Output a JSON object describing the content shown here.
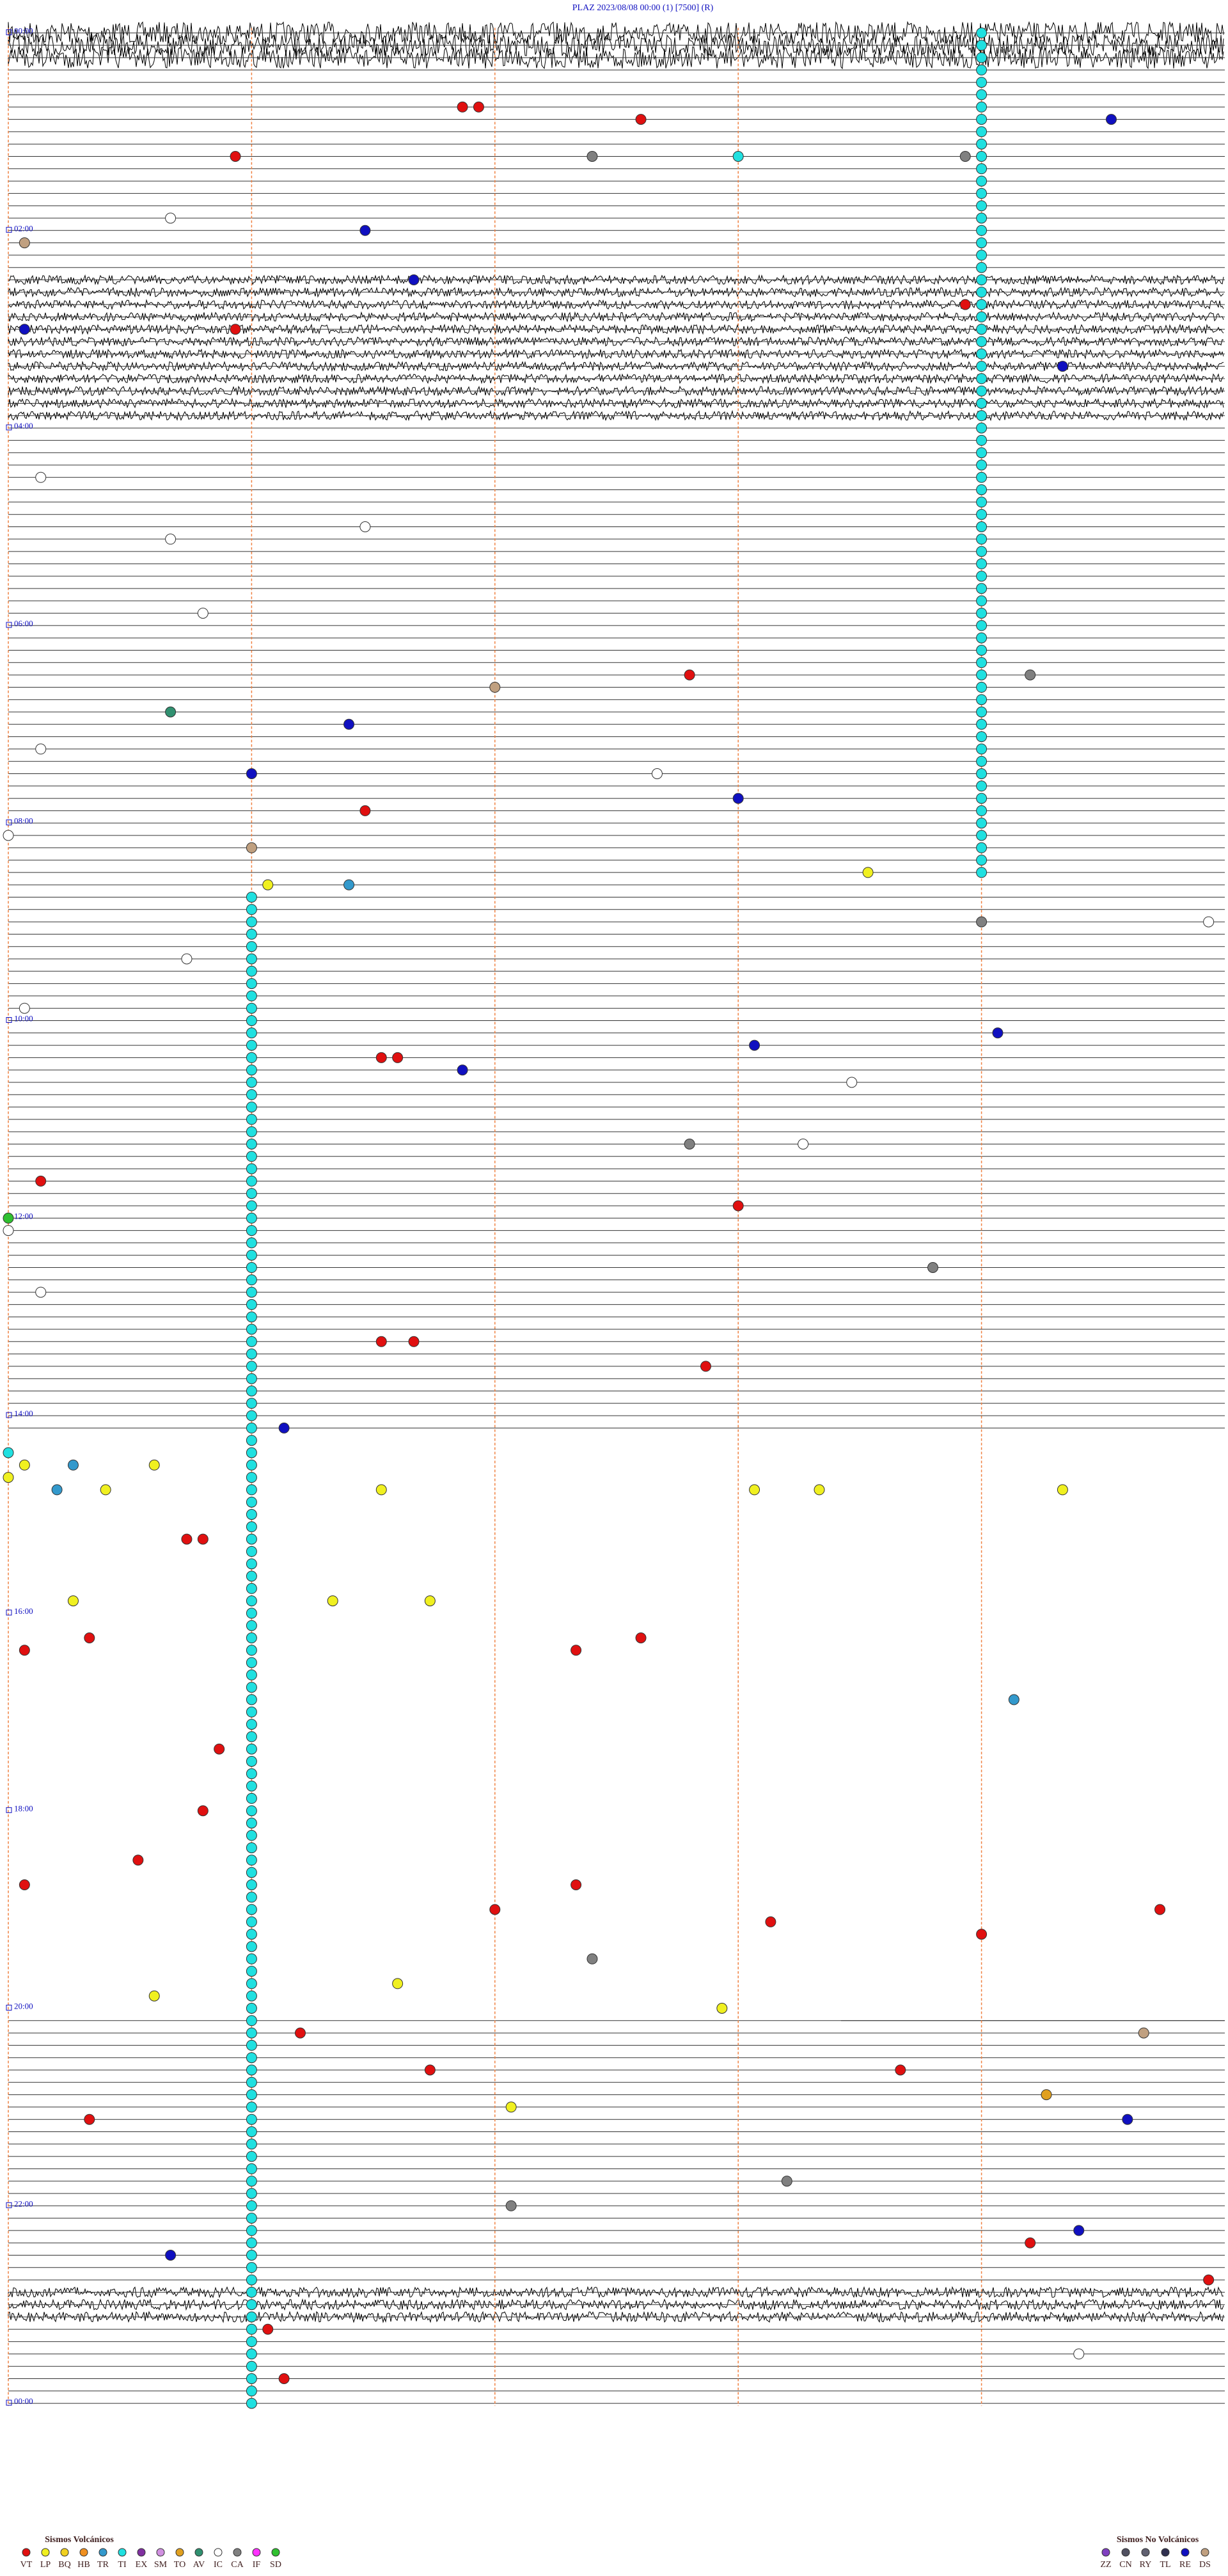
{
  "chart_data": {
    "type": "helicorder",
    "title": "PLAZ    2023/08/08 00:00     (1)   [7500]  (R)",
    "xlim": [
      0,
      7.5
    ],
    "ylim": [
      0,
      1440
    ],
    "yticks": [
      {
        "value": 0,
        "label": "00:00"
      },
      {
        "value": 120,
        "label": "02:00"
      },
      {
        "value": 240,
        "label": "04:00"
      },
      {
        "value": 360,
        "label": "06:00"
      },
      {
        "value": 480,
        "label": "08:00"
      },
      {
        "value": 600,
        "label": "10:00"
      },
      {
        "value": 720,
        "label": "12:00"
      },
      {
        "value": 840,
        "label": "14:00"
      },
      {
        "value": 960,
        "label": "16:00"
      },
      {
        "value": 1080,
        "label": "18:00"
      },
      {
        "value": 1200,
        "label": "20:00"
      },
      {
        "value": 1320,
        "label": "22:00"
      },
      {
        "value": 1440,
        "label": "00:00"
      }
    ],
    "legend": [
      {
        "title": "Sismos Volcánicos",
        "classes": [
          {
            "code": "VT",
            "color": "#e01010"
          },
          {
            "code": "LP",
            "color": "#f0f020"
          },
          {
            "code": "BQ",
            "color": "#f0d020"
          },
          {
            "code": "HB",
            "color": "#f09020"
          },
          {
            "code": "TR",
            "color": "#3399cc"
          },
          {
            "code": "TI",
            "color": "#20e0e0"
          },
          {
            "code": "EX",
            "color": "#8030a0"
          },
          {
            "code": "SM",
            "color": "#d090e0"
          },
          {
            "code": "TO",
            "color": "#e0a020"
          },
          {
            "code": "AV",
            "color": "#309070"
          },
          {
            "code": "IC",
            "color": "#ffffff"
          },
          {
            "code": "CA",
            "color": "#808080"
          },
          {
            "code": "IF",
            "color": "#ff30ff"
          },
          {
            "code": "SD",
            "color": "#30c030"
          }
        ]
      },
      {
        "title": "Sismos No Volcánicos",
        "classes": [
          {
            "code": "ZZ",
            "color": "#8040c0"
          },
          {
            "code": "CN",
            "color": "#505060"
          },
          {
            "code": "RY",
            "color": "#606070"
          },
          {
            "code": "TL",
            "color": "#303050"
          },
          {
            "code": "RE",
            "color": "#1010c0"
          },
          {
            "code": "DS",
            "color": "#c0a080"
          }
        ]
      }
    ],
    "episodes": [
      {
        "code": "TI",
        "first": 6.0,
        "last": 516.0,
        "interval": 7.5
      },
      {
        "code": "TI",
        "first": 526.5,
        "last": 1441.5,
        "interval": 7.5
      }
    ],
    "events": [
      {
        "code": "VT",
        "minute": 47.8
      },
      {
        "code": "VT",
        "minute": 47.9
      },
      {
        "code": "VT",
        "minute": 56.4
      },
      {
        "code": "RE",
        "minute": 59.3
      },
      {
        "code": "VT",
        "minute": 76.4
      },
      {
        "code": "CA",
        "minute": 78.6
      },
      {
        "code": "TI",
        "minute": 79.5
      },
      {
        "code": "CA",
        "minute": 80.9
      },
      {
        "code": "IC",
        "minute": 113.5
      },
      {
        "code": "RE",
        "minute": 122.2
      },
      {
        "code": "DS",
        "minute": 127.6
      },
      {
        "code": "RE",
        "minute": 152.5
      },
      {
        "code": "VT",
        "minute": 170.9
      },
      {
        "code": "RE",
        "minute": 180.1
      },
      {
        "code": "VT",
        "minute": 181.4
      },
      {
        "code": "RE",
        "minute": 209.0
      },
      {
        "code": "IC",
        "minute": 270.2
      },
      {
        "code": "IC",
        "minute": 302.2
      },
      {
        "code": "IC",
        "minute": 308.5
      },
      {
        "code": "IC",
        "minute": 353.7
      },
      {
        "code": "VT",
        "minute": 394.2
      },
      {
        "code": "CA",
        "minute": 396.3
      },
      {
        "code": "DS",
        "minute": 400.5
      },
      {
        "code": "AV",
        "minute": 413.5
      },
      {
        "code": "RE",
        "minute": 422.1
      },
      {
        "code": "IC",
        "minute": 435.2
      },
      {
        "code": "RE",
        "minute": 451.5
      },
      {
        "code": "IC",
        "minute": 454.0
      },
      {
        "code": "RE",
        "minute": 469.5
      },
      {
        "code": "VT",
        "minute": 474.7
      },
      {
        "code": "IC",
        "minute": 487.5
      },
      {
        "code": "DS",
        "minute": 496.5
      },
      {
        "code": "LP",
        "minute": 515.3
      },
      {
        "code": "LP",
        "minute": 519.1
      },
      {
        "code": "TR",
        "minute": 519.6
      },
      {
        "code": "CA",
        "minute": 546.0
      },
      {
        "code": "IC",
        "minute": 547.4
      },
      {
        "code": "IC",
        "minute": 563.6
      },
      {
        "code": "IC",
        "minute": 592.6
      },
      {
        "code": "RE",
        "minute": 613.6
      },
      {
        "code": "RE",
        "minute": 619.6
      },
      {
        "code": "VT",
        "minute": 624.8
      },
      {
        "code": "VT",
        "minute": 624.9
      },
      {
        "code": "RE",
        "minute": 632.8
      },
      {
        "code": "IC",
        "minute": 642.7
      },
      {
        "code": "CA",
        "minute": 679.2
      },
      {
        "code": "IC",
        "minute": 679.9
      },
      {
        "code": "VT",
        "minute": 697.7
      },
      {
        "code": "VT",
        "minute": 717.0
      },
      {
        "code": "SD",
        "minute": 720.0
      },
      {
        "code": "IC",
        "minute": 727.5
      },
      {
        "code": "CA",
        "minute": 755.7
      },
      {
        "code": "IC",
        "minute": 765.2
      },
      {
        "code": "VT",
        "minute": 797.3
      },
      {
        "code": "VT",
        "minute": 797.5
      },
      {
        "code": "VT",
        "minute": 814.3
      },
      {
        "code": "RE",
        "minute": 849.2
      },
      {
        "code": "TI",
        "minute": 862.5
      },
      {
        "code": "LP",
        "minute": 870.1
      },
      {
        "code": "TR",
        "minute": 870.4
      },
      {
        "code": "LP",
        "minute": 870.9
      },
      {
        "code": "LP",
        "minute": 877.5
      },
      {
        "code": "TR",
        "minute": 885.3
      },
      {
        "code": "LP",
        "minute": 885.6
      },
      {
        "code": "LP",
        "minute": 887.3
      },
      {
        "code": "LP",
        "minute": 889.6
      },
      {
        "code": "LP",
        "minute": 890.0
      },
      {
        "code": "LP",
        "minute": 891.5
      },
      {
        "code": "VT",
        "minute": 916.1
      },
      {
        "code": "VT",
        "minute": 916.2
      },
      {
        "code": "LP",
        "minute": 952.9
      },
      {
        "code": "LP",
        "minute": 954.5
      },
      {
        "code": "LP",
        "minute": 955.1
      },
      {
        "code": "VT",
        "minute": 975.5
      },
      {
        "code": "VT",
        "minute": 978.9
      },
      {
        "code": "VT",
        "minute": 982.6
      },
      {
        "code": "VT",
        "minute": 986.0
      },
      {
        "code": "TR",
        "minute": 1018.7
      },
      {
        "code": "VT",
        "minute": 1043.8
      },
      {
        "code": "VT",
        "minute": 1081.2
      },
      {
        "code": "VT",
        "minute": 1110.8
      },
      {
        "code": "VT",
        "minute": 1125.1
      },
      {
        "code": "VT",
        "minute": 1128.5
      },
      {
        "code": "VT",
        "minute": 1143.0
      },
      {
        "code": "VT",
        "minute": 1147.1
      },
      {
        "code": "VT",
        "minute": 1152.2
      },
      {
        "code": "VT",
        "minute": 1161.0
      },
      {
        "code": "CA",
        "minute": 1173.6
      },
      {
        "code": "LP",
        "minute": 1187.4
      },
      {
        "code": "LP",
        "minute": 1193.4
      },
      {
        "code": "LP",
        "minute": 1204.4
      },
      {
        "code": "VT",
        "minute": 1216.8
      },
      {
        "code": "DS",
        "minute": 1222.0
      },
      {
        "code": "VT",
        "minute": 1240.1
      },
      {
        "code": "VT",
        "minute": 1243.0
      },
      {
        "code": "TO",
        "minute": 1258.9
      },
      {
        "code": "LP",
        "minute": 1263.1
      },
      {
        "code": "VT",
        "minute": 1268.0
      },
      {
        "code": "RE",
        "minute": 1274.4
      },
      {
        "code": "CA",
        "minute": 1309.8
      },
      {
        "code": "CA",
        "minute": 1323.1
      },
      {
        "code": "RE",
        "minute": 1341.6
      },
      {
        "code": "VT",
        "minute": 1348.8
      },
      {
        "code": "RE",
        "minute": 1351.0
      },
      {
        "code": "VT",
        "minute": 1372.4
      },
      {
        "code": "VT",
        "minute": 1396.6
      },
      {
        "code": "IC",
        "minute": 1416.6
      },
      {
        "code": "VT",
        "minute": 1426.7
      }
    ]
  }
}
